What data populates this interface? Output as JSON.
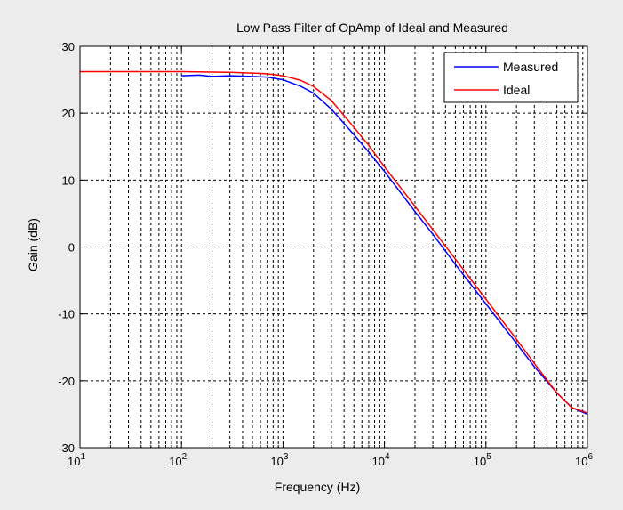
{
  "chart_data": {
    "type": "line",
    "title": "Low Pass Filter of OpAmp of Ideal and Measured",
    "xlabel": "Frequency (Hz)",
    "ylabel": "Gain (dB)",
    "xscale": "log",
    "xlim": [
      10,
      1000000
    ],
    "ylim": [
      -30,
      30
    ],
    "x_ticks": [
      {
        "base": "10",
        "exp": "1",
        "value": 10
      },
      {
        "base": "10",
        "exp": "2",
        "value": 100
      },
      {
        "base": "10",
        "exp": "3",
        "value": 1000
      },
      {
        "base": "10",
        "exp": "4",
        "value": 10000
      },
      {
        "base": "10",
        "exp": "5",
        "value": 100000
      },
      {
        "base": "10",
        "exp": "6",
        "value": 1000000
      }
    ],
    "y_ticks": [
      {
        "label": "30",
        "value": 30
      },
      {
        "label": "20",
        "value": 20
      },
      {
        "label": "10",
        "value": 10
      },
      {
        "label": "0",
        "value": 0
      },
      {
        "label": "-10",
        "value": -10
      },
      {
        "label": "-20",
        "value": -20
      },
      {
        "label": "-30",
        "value": -30
      }
    ],
    "grid": true,
    "grid_minor": true,
    "legend_position": "top-right",
    "series": [
      {
        "name": "Measured",
        "color": "#0000ff",
        "x": [
          100,
          150,
          200,
          300,
          500,
          700,
          1000,
          1500,
          2000,
          3000,
          5000,
          7000,
          10000,
          20000,
          30000,
          50000,
          100000,
          200000,
          300000,
          500000,
          700000,
          1000000
        ],
        "y": [
          25.6,
          25.7,
          25.5,
          25.6,
          25.5,
          25.4,
          25.0,
          24.0,
          23.0,
          20.6,
          16.8,
          14.2,
          11.3,
          5.3,
          1.9,
          -2.6,
          -8.5,
          -14.4,
          -17.9,
          -21.8,
          -24.0,
          -25.0
        ]
      },
      {
        "name": "Ideal",
        "color": "#ff0000",
        "x": [
          10,
          100,
          300,
          500,
          700,
          1000,
          1500,
          2000,
          3000,
          5000,
          7000,
          10000,
          20000,
          30000,
          50000,
          100000,
          200000,
          300000,
          500000,
          700000,
          1000000
        ],
        "y": [
          26.2,
          26.2,
          26.1,
          26.0,
          25.9,
          25.6,
          24.9,
          24.0,
          21.9,
          17.9,
          15.2,
          12.0,
          6.1,
          2.6,
          -1.8,
          -7.8,
          -13.8,
          -17.4,
          -21.8,
          -24.0,
          -24.8
        ]
      }
    ]
  }
}
